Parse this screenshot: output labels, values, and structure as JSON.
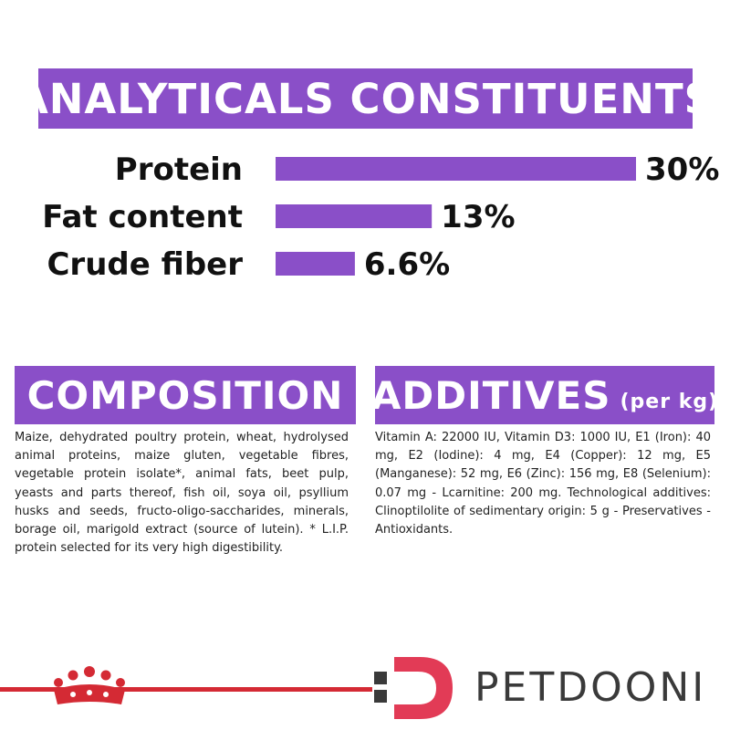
{
  "banner": {
    "title": "ANALYTICALS CONSTITUENTS"
  },
  "chart_data": {
    "type": "bar",
    "orientation": "horizontal",
    "categories": [
      "Protein",
      "Fat content",
      "Crude fiber"
    ],
    "values": [
      30,
      13,
      6.6
    ],
    "value_labels": [
      "30%",
      "13%",
      "6.6%"
    ],
    "xlim": [
      0,
      30
    ],
    "grid": false,
    "color": "#8a4fc8"
  },
  "composition": {
    "title": "COMPOSITION",
    "text": "Maize, dehydrated poultry protein, wheat, hydrolysed animal proteins, maize gluten, vegetable fibres, vegetable protein isolate*, animal fats, beet pulp, yeasts and parts thereof, fish oil, soya oil, psyllium husks and seeds, fructo-oligo-saccharides, minerals, borage oil, marigold extract (source of lutein). * L.I.P. protein selected for its very high digestibility."
  },
  "additives": {
    "title": "ADDITIVES",
    "subtitle": "(per kg)",
    "text": "Vitamin A: 22000 IU, Vitamin D3: 1000 IU, E1 (Iron): 40 mg, E2 (Iodine): 4 mg, E4 (Copper): 12 mg, E5 (Manganese): 52 mg, E6 (Zinc): 156 mg, E8 (Selenium): 0.07 mg - Lcarnitine: 200 mg. Technological additives: Clinoptilolite of sedimentary origin: 5 g - Preservatives - Antioxidants."
  },
  "footer": {
    "brand_text": "PETDOONI",
    "crown_icon": "crown-icon",
    "accent": "#d42a34",
    "logo_color": "#e23b56"
  }
}
